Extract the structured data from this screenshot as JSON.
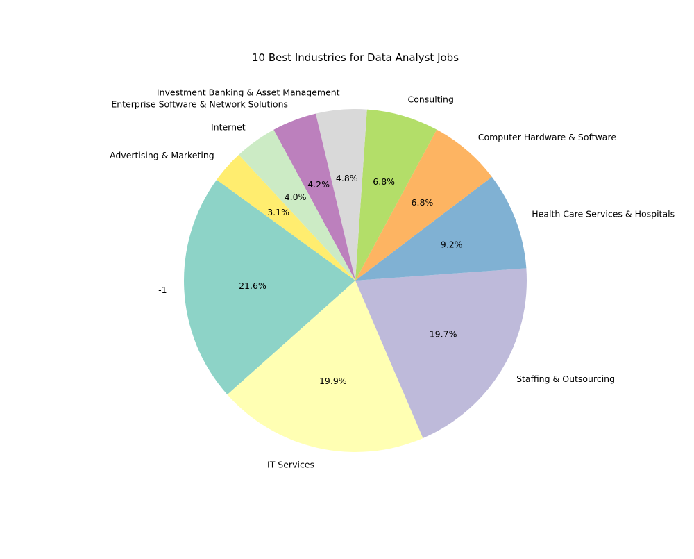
{
  "chart_data": {
    "type": "pie",
    "title": "10 Best Industries for Data Analyst Jobs",
    "start_angle_deg": 144,
    "direction": "counterclockwise",
    "slices": [
      {
        "label": "-1",
        "value": 21.6,
        "pct_label": "21.6%",
        "color": "#8dd3c7"
      },
      {
        "label": "IT Services",
        "value": 19.9,
        "pct_label": "19.9%",
        "color": "#ffffb3"
      },
      {
        "label": "Staffing & Outsourcing",
        "value": 19.7,
        "pct_label": "19.7%",
        "color": "#bebada"
      },
      {
        "label": "Health Care Services & Hospitals",
        "value": 9.2,
        "pct_label": "9.2%",
        "color": "#80b1d3"
      },
      {
        "label": "Computer Hardware & Software",
        "value": 6.8,
        "pct_label": "6.8%",
        "color": "#fdb462"
      },
      {
        "label": "Consulting",
        "value": 6.8,
        "pct_label": "6.8%",
        "color": "#b3de69"
      },
      {
        "label": "Investment Banking & Asset Management",
        "value": 4.8,
        "pct_label": "4.8%",
        "color": "#d9d9d9"
      },
      {
        "label": "Enterprise Software & Network Solutions",
        "value": 4.2,
        "pct_label": "4.2%",
        "color": "#bc80bd"
      },
      {
        "label": "Internet",
        "value": 4.0,
        "pct_label": "4.0%",
        "color": "#ccebc5"
      },
      {
        "label": "Advertising & Marketing",
        "value": 3.1,
        "pct_label": "3.1%",
        "color": "#ffed6f"
      }
    ]
  }
}
